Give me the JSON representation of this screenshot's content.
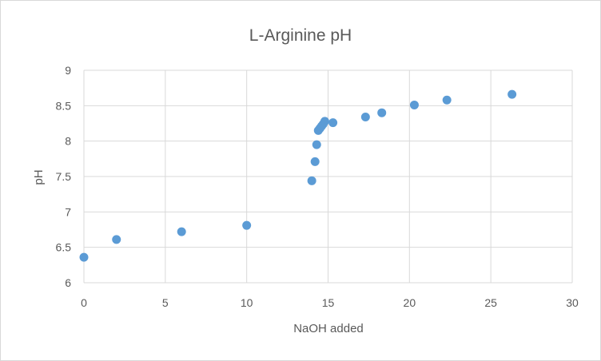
{
  "chart_data": {
    "type": "scatter",
    "title": "L-Arginine pH",
    "xlabel": "NaOH added",
    "ylabel": "pH",
    "xlim": [
      0,
      30
    ],
    "ylim": [
      6,
      9
    ],
    "x_ticks": [
      0,
      5,
      10,
      15,
      20,
      25,
      30
    ],
    "y_ticks": [
      6,
      6.5,
      7,
      7.5,
      8,
      8.5,
      9
    ],
    "grid": true,
    "legend": "none",
    "marker_color": "#5b9bd5",
    "points": [
      {
        "x": 0,
        "y": 6.36
      },
      {
        "x": 2,
        "y": 6.61
      },
      {
        "x": 6,
        "y": 6.72
      },
      {
        "x": 10,
        "y": 6.81
      },
      {
        "x": 14,
        "y": 7.44
      },
      {
        "x": 14.2,
        "y": 7.71
      },
      {
        "x": 14.3,
        "y": 7.95
      },
      {
        "x": 14.4,
        "y": 8.15
      },
      {
        "x": 14.5,
        "y": 8.18
      },
      {
        "x": 14.6,
        "y": 8.21
      },
      {
        "x": 14.7,
        "y": 8.24
      },
      {
        "x": 14.8,
        "y": 8.28
      },
      {
        "x": 15.3,
        "y": 8.26
      },
      {
        "x": 17.3,
        "y": 8.34
      },
      {
        "x": 18.3,
        "y": 8.4
      },
      {
        "x": 20.3,
        "y": 8.51
      },
      {
        "x": 22.3,
        "y": 8.58
      },
      {
        "x": 26.3,
        "y": 8.66
      }
    ]
  }
}
